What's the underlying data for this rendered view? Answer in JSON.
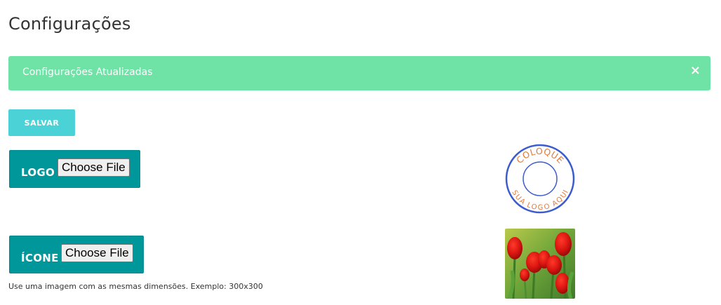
{
  "page": {
    "title": "Configurações"
  },
  "alert": {
    "message": "Configurações Atualizadas",
    "close_glyph": "×",
    "background_color": "#6ee3a5"
  },
  "actions": {
    "save_label": "SALVAR",
    "accent_color": "#4ad2d6"
  },
  "uploads": {
    "logo": {
      "label": "LOGO",
      "button_label": "Choose File",
      "preview": {
        "top_text": "COLOQUE",
        "bottom_text": "SUA LOGO AQUI",
        "ring_color": "#3b5bd0",
        "text_color": "#e07a3a"
      }
    },
    "icon": {
      "label": "ÍCONE",
      "button_label": "Choose File",
      "hint": "Use uma imagem com as mesmas dimensões. Exemplo: 300x300",
      "preview": {
        "subject": "red tulips"
      }
    },
    "panel_color": "#00979b"
  }
}
